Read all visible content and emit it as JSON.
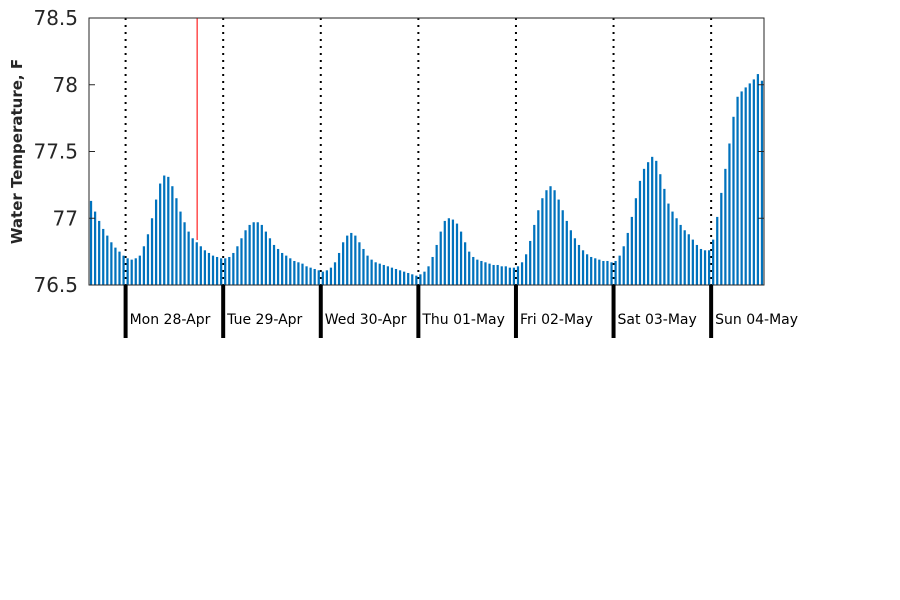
{
  "chart_data": {
    "type": "bar",
    "title": "",
    "xlabel": "",
    "ylabel": "Water Temperature, F",
    "ylim": [
      76.5,
      78.5
    ],
    "yticks": [
      76.5,
      77,
      77.5,
      78,
      78.5
    ],
    "ytick_labels": [
      "76.5",
      "77",
      "77.5",
      "78",
      "78.5"
    ],
    "bar_color": "#0072bd",
    "marker_color": "#ff3333",
    "marker_hours_from_start": 26,
    "hours_before_first_day": 9,
    "first_day_label": "Mon 28-Apr",
    "day_labels": [
      "Mon 28-Apr",
      "Tue 29-Apr",
      "Wed 30-Apr",
      "Thu 01-May",
      "Fri 02-May",
      "Sat 03-May",
      "Sun 04-May"
    ],
    "day_separators": "dotted",
    "grid": false,
    "values": [
      77.13,
      77.05,
      76.98,
      76.92,
      76.87,
      76.82,
      76.78,
      76.75,
      76.72,
      76.7,
      76.69,
      76.7,
      76.72,
      76.79,
      76.88,
      77.0,
      77.14,
      77.26,
      77.32,
      77.31,
      77.24,
      77.15,
      77.05,
      76.97,
      76.9,
      76.85,
      76.82,
      76.79,
      76.76,
      76.74,
      76.72,
      76.71,
      76.7,
      76.7,
      76.71,
      76.74,
      76.79,
      76.85,
      76.91,
      76.95,
      76.97,
      76.97,
      76.95,
      76.9,
      76.85,
      76.8,
      76.77,
      76.74,
      76.72,
      76.7,
      76.68,
      76.67,
      76.66,
      76.64,
      76.63,
      76.62,
      76.61,
      76.6,
      76.61,
      76.63,
      76.67,
      76.74,
      76.82,
      76.87,
      76.89,
      76.87,
      76.82,
      76.77,
      76.72,
      76.69,
      76.67,
      76.66,
      76.65,
      76.64,
      76.63,
      76.62,
      76.61,
      76.6,
      76.59,
      76.58,
      76.57,
      76.58,
      76.6,
      76.64,
      76.71,
      76.8,
      76.9,
      76.98,
      77.0,
      76.99,
      76.96,
      76.9,
      76.82,
      76.75,
      76.71,
      76.69,
      76.68,
      76.67,
      76.66,
      76.65,
      76.65,
      76.64,
      76.64,
      76.63,
      76.63,
      76.64,
      76.67,
      76.73,
      76.83,
      76.95,
      77.06,
      77.15,
      77.21,
      77.24,
      77.21,
      77.14,
      77.06,
      76.98,
      76.91,
      76.85,
      76.8,
      76.76,
      76.73,
      76.71,
      76.7,
      76.69,
      76.68,
      76.68,
      76.67,
      76.68,
      76.72,
      76.79,
      76.89,
      77.01,
      77.15,
      77.28,
      77.37,
      77.42,
      77.46,
      77.43,
      77.33,
      77.22,
      77.11,
      77.05,
      77.0,
      76.95,
      76.91,
      76.88,
      76.84,
      76.8,
      76.77,
      76.76,
      76.76,
      76.84,
      77.01,
      77.19,
      77.37,
      77.56,
      77.76,
      77.91,
      77.95,
      77.98,
      78.01,
      78.04,
      78.08,
      78.03
    ]
  }
}
